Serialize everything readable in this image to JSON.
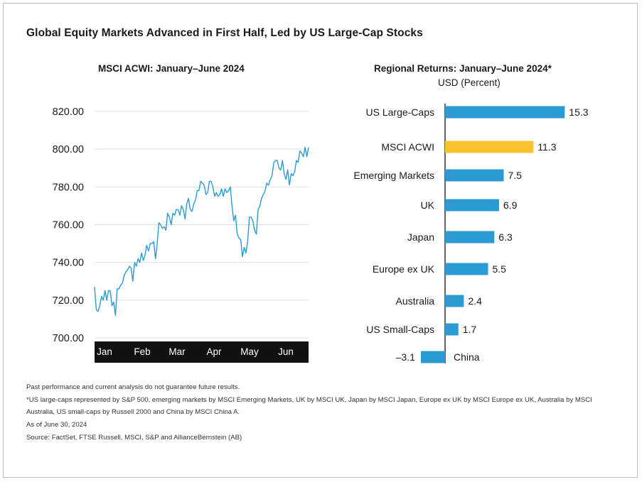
{
  "title": "Global Equity Markets Advanced in First Half, Led by US Large-Cap Stocks",
  "colors": {
    "line": "#2b9bd4",
    "bar": "#2b9bd4",
    "bar_highlight": "#f8c32e",
    "axis_band": "#111111",
    "grid": "#e2e2e2"
  },
  "chart_data": [
    {
      "type": "line",
      "title": "MSCI ACWI: January–June 2024",
      "ylim": [
        700,
        820
      ],
      "yticks": [
        "820.00",
        "800.00",
        "780.00",
        "760.00",
        "740.00",
        "720.00",
        "700.00"
      ],
      "ytick_values": [
        820,
        800,
        780,
        760,
        740,
        720,
        700
      ],
      "xtick_labels": [
        "Jan",
        "Feb",
        "Mar",
        "Apr",
        "May",
        "Jun"
      ],
      "grid": true,
      "x_trading_days": 124,
      "series": [
        {
          "values": [
            727,
            715,
            714,
            717,
            722,
            720,
            725,
            720,
            725,
            725,
            717,
            719,
            712,
            726,
            726,
            728,
            729,
            733,
            735,
            736,
            738,
            737,
            730,
            740,
            738,
            742,
            740,
            745,
            741,
            744,
            749,
            746,
            750,
            750,
            751,
            742,
            750,
            761,
            760,
            758,
            759,
            757,
            766,
            764,
            760,
            766,
            765,
            768,
            768,
            765,
            770,
            768,
            763,
            771,
            774,
            768,
            767,
            771,
            773,
            778,
            778,
            783,
            782,
            781,
            776,
            777,
            783,
            783,
            780,
            775,
            777,
            775,
            776,
            779,
            775,
            779,
            777,
            778,
            780,
            770,
            762,
            765,
            755,
            753,
            752,
            743,
            748,
            745,
            751,
            764,
            764,
            762,
            757,
            755,
            768,
            770,
            774,
            776,
            778,
            782,
            781,
            784,
            786,
            793,
            794,
            794,
            790,
            789,
            794,
            787,
            784,
            789,
            781,
            787,
            786,
            788,
            794,
            793,
            799,
            798,
            796,
            801,
            796,
            801
          ]
        }
      ]
    },
    {
      "type": "bar",
      "orientation": "horizontal",
      "title": "Regional Returns: January–June 2024*",
      "units": "USD (Percent)",
      "categories": [
        "US Large-Caps",
        "MSCI ACWI",
        "Emerging Markets",
        "UK",
        "Japan",
        "Europe ex UK",
        "Australia",
        "US Small-Caps",
        "China"
      ],
      "values": [
        15.3,
        11.3,
        7.5,
        6.9,
        6.3,
        5.5,
        2.4,
        1.7,
        -3.1
      ],
      "value_labels": [
        "15.3",
        "11.3",
        "7.5",
        "6.9",
        "6.3",
        "5.5",
        "2.4",
        "1.7",
        "–3.1"
      ],
      "highlight": "MSCI ACWI"
    }
  ],
  "footnotes": [
    "Past performance and current analysis do not guarantee future results.",
    "*US large-caps represented by S&P 500, emerging markets by MSCI Emerging Markets, UK by MSCI UK, Japan by MSCI Japan, Europe ex UK by MSCI Europe ex UK, Australia by MSCI Australia, US small-caps by Russell 2000 and China by MSCI China A.",
    "As of June 30, 2024",
    "Source: FactSet, FTSE Russell, MSCI, S&P and AllianceBernstein (AB)"
  ]
}
